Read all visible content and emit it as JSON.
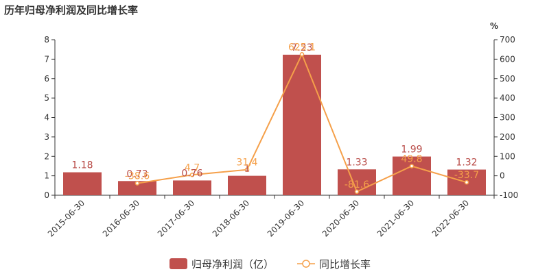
{
  "title": "历年归母净利润及同比增长率",
  "chart_data": {
    "type": "bar",
    "categories": [
      "2015-06-30",
      "2016-06-30",
      "2017-06-30",
      "2018-06-30",
      "2019-06-30",
      "2020-06-30",
      "2021-06-30",
      "2022-06-30"
    ],
    "series": [
      {
        "name": "归母净利润（亿）",
        "type": "bar",
        "axis": "left",
        "values": [
          1.18,
          0.73,
          0.76,
          1,
          7.23,
          1.33,
          1.99,
          1.32
        ],
        "labels": [
          "1.18",
          "0.73",
          "0.76",
          "1",
          "7.23",
          "1.33",
          "1.99",
          "1.32"
        ],
        "color": "#c0504d"
      },
      {
        "name": "同比增长率",
        "type": "line",
        "axis": "right",
        "values": [
          null,
          -38.6,
          4.7,
          31.4,
          625.1,
          -81.6,
          49.8,
          -33.7
        ],
        "labels": [
          "",
          "-38.6",
          "4.7",
          "31.4",
          "625.1",
          "-81.6",
          "49.8",
          "-33.7"
        ],
        "color": "#f5a04a"
      }
    ],
    "y_left": {
      "min": 0,
      "max": 8,
      "ticks": [
        0,
        1,
        2,
        3,
        4,
        5,
        6,
        7,
        8
      ]
    },
    "y_right": {
      "unit": "%",
      "min": -100,
      "max": 700,
      "ticks": [
        -100,
        0,
        100,
        200,
        300,
        400,
        500,
        600,
        700
      ]
    },
    "legend": "bottom-center"
  }
}
